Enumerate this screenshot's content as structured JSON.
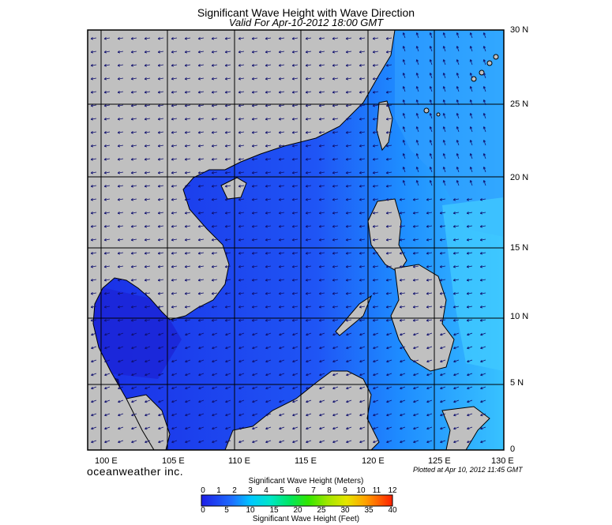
{
  "title": "Significant Wave Height with Wave Direction",
  "subtitle": "Valid For Apr-10-2012 18:00 GMT",
  "brand": "oceanweather inc.",
  "plotted": "Plotted at Apr 10, 2012 11:45 GMT",
  "lon_labels": [
    "100 E",
    "105 E",
    "110 E",
    "115 E",
    "120 E",
    "125 E",
    "130 E"
  ],
  "lat_labels": [
    "30 N",
    "25 N",
    "20 N",
    "15 N",
    "10 N",
    "5 N",
    "0"
  ],
  "colors": {
    "land": "#c0c0c0",
    "sea_low": "#1e3cf0",
    "sea_mid": "#1e78ff",
    "sea_high": "#3cb4ff",
    "coast": "#000000",
    "grid": "#000000"
  },
  "scale": {
    "meters_label": "Significant Wave Height (Meters)",
    "feet_label": "Significant Wave Height (Feet)",
    "meters_ticks": [
      "0",
      "1",
      "2",
      "3",
      "4",
      "5",
      "6",
      "7",
      "8",
      "9",
      "10",
      "11",
      "12"
    ],
    "feet_ticks": [
      "0",
      "5",
      "10",
      "15",
      "20",
      "25",
      "30",
      "35",
      "40"
    ]
  }
}
